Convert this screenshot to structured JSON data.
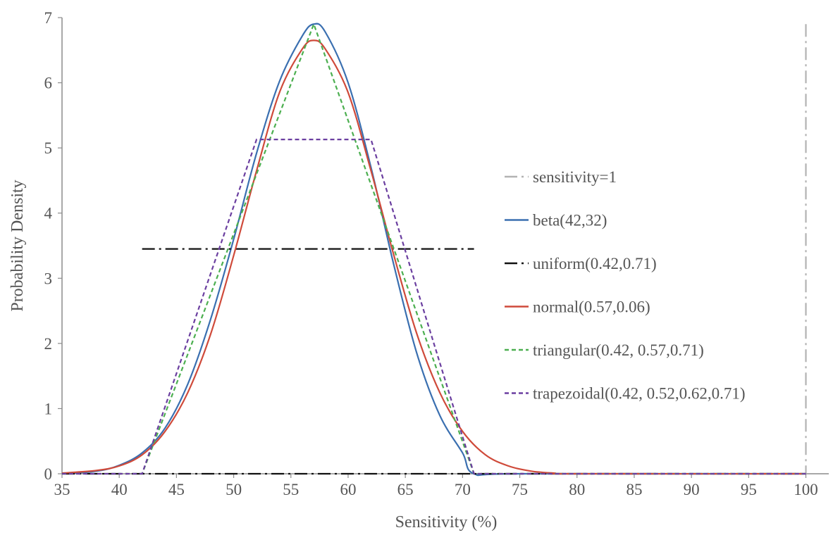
{
  "chart_data": {
    "type": "line",
    "xlabel": "Sensitivity (%)",
    "ylabel": "Probability Density",
    "xlim": [
      35,
      102
    ],
    "ylim": [
      0,
      7
    ],
    "x_ticks": [
      35,
      40,
      45,
      50,
      55,
      60,
      65,
      70,
      75,
      80,
      85,
      90,
      95,
      100
    ],
    "y_ticks": [
      0,
      1,
      2,
      3,
      4,
      5,
      6,
      7
    ],
    "grid": false,
    "legend_position": "right",
    "series": [
      {
        "name": "sensitivity=1",
        "color": "#b3b3b3",
        "style": "dash-dot",
        "kind": "vertical",
        "x": 100,
        "y_range": [
          0,
          6.9
        ]
      },
      {
        "name": "beta(42,32)",
        "color": "#3a6fb0",
        "style": "solid",
        "kind": "curve",
        "points": [
          [
            35,
            0.0
          ],
          [
            38,
            0.04
          ],
          [
            40,
            0.13
          ],
          [
            42,
            0.32
          ],
          [
            44,
            0.7
          ],
          [
            46,
            1.38
          ],
          [
            48,
            2.38
          ],
          [
            50,
            3.6
          ],
          [
            52,
            4.92
          ],
          [
            54,
            6.02
          ],
          [
            56,
            6.72
          ],
          [
            57,
            6.9
          ],
          [
            58,
            6.78
          ],
          [
            60,
            6.0
          ],
          [
            62,
            4.7
          ],
          [
            64,
            3.2
          ],
          [
            66,
            1.85
          ],
          [
            68,
            0.9
          ],
          [
            70,
            0.32
          ],
          [
            71,
            0.0
          ],
          [
            75,
            0.0
          ],
          [
            100,
            0.0
          ]
        ]
      },
      {
        "name": "uniform(0.42,0.71)",
        "color": "#111111",
        "style": "dash-dot",
        "kind": "polyline",
        "points": [
          [
            42,
            3.45
          ],
          [
            71,
            3.45
          ]
        ],
        "baseline_segment": [
          [
            35,
            0
          ],
          [
            100,
            0
          ]
        ]
      },
      {
        "name": "normal(0.57,0.06)",
        "color": "#cf4a3a",
        "style": "solid",
        "kind": "curve",
        "points": [
          [
            35,
            0.01
          ],
          [
            38,
            0.05
          ],
          [
            40,
            0.12
          ],
          [
            42,
            0.29
          ],
          [
            44,
            0.65
          ],
          [
            46,
            1.25
          ],
          [
            48,
            2.15
          ],
          [
            50,
            3.35
          ],
          [
            52,
            4.65
          ],
          [
            54,
            5.85
          ],
          [
            56,
            6.52
          ],
          [
            57,
            6.65
          ],
          [
            58,
            6.52
          ],
          [
            60,
            5.85
          ],
          [
            62,
            4.65
          ],
          [
            64,
            3.35
          ],
          [
            66,
            2.15
          ],
          [
            68,
            1.25
          ],
          [
            70,
            0.65
          ],
          [
            72,
            0.29
          ],
          [
            74,
            0.12
          ],
          [
            76,
            0.04
          ],
          [
            78,
            0.01
          ],
          [
            80,
            0.0
          ],
          [
            100,
            0.0
          ]
        ]
      },
      {
        "name": "triangular(0.42, 0.57,0.71)",
        "color": "#4caf50",
        "style": "dashed",
        "kind": "polyline",
        "points": [
          [
            35,
            0
          ],
          [
            42,
            0
          ],
          [
            57,
            6.9
          ],
          [
            71,
            0
          ],
          [
            100,
            0
          ]
        ]
      },
      {
        "name": "trapezoidal(0.42, 0.52,0.62,0.71)",
        "color": "#6b3fa0",
        "style": "dashed",
        "kind": "polyline",
        "points": [
          [
            35,
            0
          ],
          [
            42,
            0
          ],
          [
            52,
            5.13
          ],
          [
            62,
            5.13
          ],
          [
            71,
            0
          ],
          [
            100,
            0
          ]
        ]
      }
    ]
  }
}
